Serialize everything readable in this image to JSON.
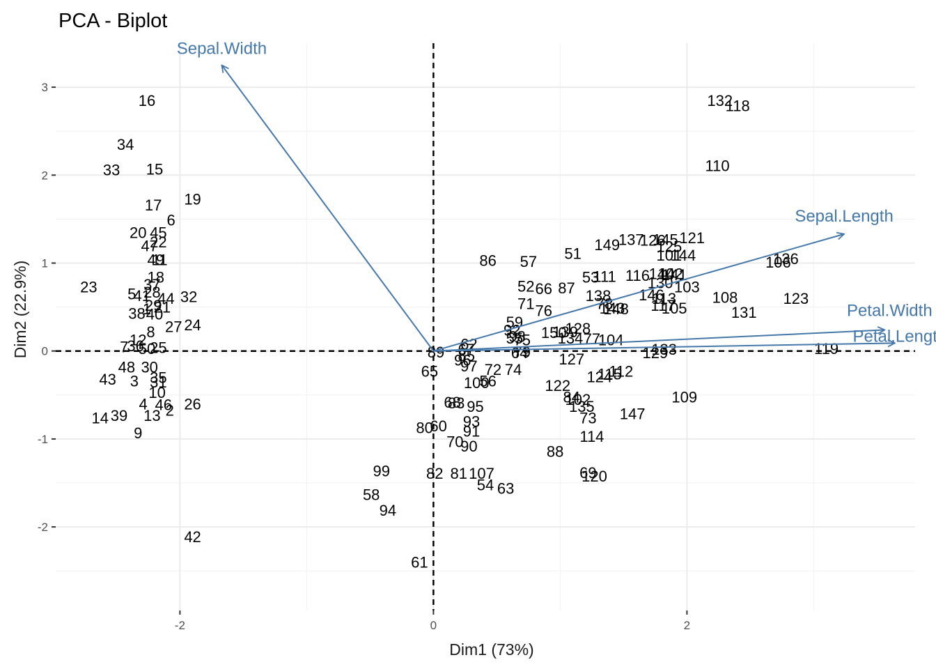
{
  "chart_data": {
    "type": "scatter",
    "title": "PCA - Biplot",
    "xlabel": "Dim1 (73%)",
    "ylabel": "Dim2 (22.9%)",
    "xlim": [
      -2.98,
      3.8
    ],
    "ylim": [
      -2.95,
      3.5
    ],
    "x_ticks": [
      -2,
      0,
      2
    ],
    "y_ticks": [
      -2,
      -1,
      0,
      1,
      2,
      3
    ],
    "grid": true,
    "reference_lines": [
      0,
      0
    ],
    "colors": {
      "variables": "#4477aa",
      "points": "#000000",
      "grid": "#ebebeb"
    },
    "variables": [
      {
        "name": "Sepal.Length",
        "x": 3.24,
        "y": 1.33
      },
      {
        "name": "Sepal.Width",
        "x": -1.67,
        "y": 3.25
      },
      {
        "name": "Petal.Length",
        "x": 3.64,
        "y": 0.09
      },
      {
        "name": "Petal.Width",
        "x": 3.56,
        "y": 0.24
      }
    ],
    "points": [
      {
        "label": "1",
        "x": -2.26,
        "y": 0.48
      },
      {
        "label": "2",
        "x": -2.08,
        "y": -0.67
      },
      {
        "label": "3",
        "x": -2.36,
        "y": -0.34
      },
      {
        "label": "4",
        "x": -2.29,
        "y": -0.6
      },
      {
        "label": "5",
        "x": -2.38,
        "y": 0.65
      },
      {
        "label": "6",
        "x": -2.07,
        "y": 1.49
      },
      {
        "label": "7",
        "x": -2.44,
        "y": 0.05
      },
      {
        "label": "8",
        "x": -2.23,
        "y": 0.22
      },
      {
        "label": "9",
        "x": -2.33,
        "y": -0.93
      },
      {
        "label": "10",
        "x": -2.18,
        "y": -0.47
      },
      {
        "label": "11",
        "x": -2.16,
        "y": 1.04
      },
      {
        "label": "12",
        "x": -2.33,
        "y": 0.13
      },
      {
        "label": "13",
        "x": -2.22,
        "y": -0.73
      },
      {
        "label": "14",
        "x": -2.63,
        "y": -0.76
      },
      {
        "label": "15",
        "x": -2.2,
        "y": 2.07
      },
      {
        "label": "16",
        "x": -2.26,
        "y": 2.85
      },
      {
        "label": "17",
        "x": -2.21,
        "y": 1.66
      },
      {
        "label": "18",
        "x": -2.19,
        "y": 0.84
      },
      {
        "label": "19",
        "x": -1.9,
        "y": 1.73
      },
      {
        "label": "20",
        "x": -2.33,
        "y": 1.35
      },
      {
        "label": "21",
        "x": -2.14,
        "y": 0.5
      },
      {
        "label": "22",
        "x": -2.17,
        "y": 1.24
      },
      {
        "label": "23",
        "x": -2.72,
        "y": 0.73
      },
      {
        "label": "24",
        "x": -1.9,
        "y": 0.3
      },
      {
        "label": "25",
        "x": -2.17,
        "y": 0.04
      },
      {
        "label": "26",
        "x": -1.9,
        "y": -0.6
      },
      {
        "label": "27",
        "x": -2.05,
        "y": 0.28
      },
      {
        "label": "28",
        "x": -2.22,
        "y": 0.67
      },
      {
        "label": "29",
        "x": -2.21,
        "y": 0.52
      },
      {
        "label": "30",
        "x": -2.24,
        "y": -0.18
      },
      {
        "label": "31",
        "x": -2.17,
        "y": -0.35
      },
      {
        "label": "32",
        "x": -1.93,
        "y": 0.62
      },
      {
        "label": "33",
        "x": -2.54,
        "y": 2.06
      },
      {
        "label": "34",
        "x": -2.43,
        "y": 2.35
      },
      {
        "label": "35",
        "x": -2.17,
        "y": -0.3
      },
      {
        "label": "36",
        "x": -2.35,
        "y": 0.06
      },
      {
        "label": "37",
        "x": -2.22,
        "y": 0.76
      },
      {
        "label": "38",
        "x": -2.34,
        "y": 0.43
      },
      {
        "label": "39",
        "x": -2.48,
        "y": -0.73
      },
      {
        "label": "40",
        "x": -2.2,
        "y": 0.42
      },
      {
        "label": "41",
        "x": -2.3,
        "y": 0.63
      },
      {
        "label": "42",
        "x": -1.9,
        "y": -2.11
      },
      {
        "label": "43",
        "x": -2.57,
        "y": -0.32
      },
      {
        "label": "44",
        "x": -2.11,
        "y": 0.6
      },
      {
        "label": "45",
        "x": -2.17,
        "y": 1.35
      },
      {
        "label": "46",
        "x": -2.13,
        "y": -0.61
      },
      {
        "label": "47",
        "x": -2.24,
        "y": 1.2
      },
      {
        "label": "48",
        "x": -2.42,
        "y": -0.18
      },
      {
        "label": "49",
        "x": -2.19,
        "y": 1.04
      },
      {
        "label": "50",
        "x": -2.26,
        "y": 0.03
      },
      {
        "label": "51",
        "x": 1.1,
        "y": 1.11
      },
      {
        "label": "52",
        "x": 0.73,
        "y": 0.74
      },
      {
        "label": "53",
        "x": 1.24,
        "y": 0.84
      },
      {
        "label": "54",
        "x": 0.41,
        "y": -1.52
      },
      {
        "label": "55",
        "x": 0.64,
        "y": 0.15
      },
      {
        "label": "56",
        "x": 0.43,
        "y": -0.34
      },
      {
        "label": "57",
        "x": 0.75,
        "y": 1.02
      },
      {
        "label": "58",
        "x": -0.49,
        "y": -1.63
      },
      {
        "label": "59",
        "x": 0.64,
        "y": 0.33
      },
      {
        "label": "60",
        "x": 0.04,
        "y": -0.85
      },
      {
        "label": "61",
        "x": -0.11,
        "y": -2.4
      },
      {
        "label": "62",
        "x": 0.28,
        "y": 0.08
      },
      {
        "label": "63",
        "x": 0.57,
        "y": -1.56
      },
      {
        "label": "64",
        "x": 0.68,
        "y": -0.02
      },
      {
        "label": "65",
        "x": -0.03,
        "y": -0.23
      },
      {
        "label": "66",
        "x": 0.87,
        "y": 0.71
      },
      {
        "label": "67",
        "x": 0.26,
        "y": 0.02
      },
      {
        "label": "68",
        "x": 0.15,
        "y": -0.58
      },
      {
        "label": "69",
        "x": 1.22,
        "y": -1.38
      },
      {
        "label": "70",
        "x": 0.17,
        "y": -1.03
      },
      {
        "label": "71",
        "x": 0.73,
        "y": 0.54
      },
      {
        "label": "72",
        "x": 0.47,
        "y": -0.21
      },
      {
        "label": "73",
        "x": 1.22,
        "y": -0.76
      },
      {
        "label": "74",
        "x": 0.63,
        "y": -0.21
      },
      {
        "label": "75",
        "x": 0.7,
        "y": 0.13
      },
      {
        "label": "76",
        "x": 0.87,
        "y": 0.46
      },
      {
        "label": "77",
        "x": 1.25,
        "y": 0.14
      },
      {
        "label": "78",
        "x": 1.35,
        "y": 0.54
      },
      {
        "label": "79",
        "x": 0.7,
        "y": -0.01
      },
      {
        "label": "80",
        "x": -0.07,
        "y": -0.87
      },
      {
        "label": "81",
        "x": 0.2,
        "y": -1.39
      },
      {
        "label": "82",
        "x": 0.01,
        "y": -1.39
      },
      {
        "label": "83",
        "x": 0.18,
        "y": -0.59
      },
      {
        "label": "84",
        "x": 1.09,
        "y": -0.52
      },
      {
        "label": "85",
        "x": 0.26,
        "y": -0.05
      },
      {
        "label": "86",
        "x": 0.43,
        "y": 1.03
      },
      {
        "label": "87",
        "x": 1.05,
        "y": 0.72
      },
      {
        "label": "88",
        "x": 0.96,
        "y": -1.14
      },
      {
        "label": "89",
        "x": 0.02,
        "y": -0.01
      },
      {
        "label": "90",
        "x": 0.28,
        "y": -1.08
      },
      {
        "label": "91",
        "x": 0.3,
        "y": -0.91
      },
      {
        "label": "92",
        "x": 0.62,
        "y": 0.24
      },
      {
        "label": "93",
        "x": 0.3,
        "y": -0.8
      },
      {
        "label": "94",
        "x": -0.36,
        "y": -1.81
      },
      {
        "label": "95",
        "x": 0.33,
        "y": -0.63
      },
      {
        "label": "96",
        "x": 0.23,
        "y": -0.1
      },
      {
        "label": "97",
        "x": 0.28,
        "y": -0.17
      },
      {
        "label": "98",
        "x": 0.66,
        "y": 0.17
      },
      {
        "label": "99",
        "x": -0.41,
        "y": -1.36
      },
      {
        "label": "100",
        "x": 0.34,
        "y": -0.36
      },
      {
        "label": "101",
        "x": 1.86,
        "y": 1.09
      },
      {
        "label": "102",
        "x": 1.14,
        "y": -0.55
      },
      {
        "label": "103",
        "x": 2.0,
        "y": 0.73
      },
      {
        "label": "104",
        "x": 1.4,
        "y": 0.13
      },
      {
        "label": "105",
        "x": 1.9,
        "y": 0.49
      },
      {
        "label": "106",
        "x": 2.72,
        "y": 1.01
      },
      {
        "label": "107",
        "x": 0.38,
        "y": -1.39
      },
      {
        "label": "108",
        "x": 2.3,
        "y": 0.61
      },
      {
        "label": "109",
        "x": 1.98,
        "y": -0.52
      },
      {
        "label": "110",
        "x": 2.24,
        "y": 2.11
      },
      {
        "label": "111",
        "x": 1.35,
        "y": 0.85
      },
      {
        "label": "112",
        "x": 1.48,
        "y": -0.23
      },
      {
        "label": "113",
        "x": 1.82,
        "y": 0.6
      },
      {
        "label": "114",
        "x": 1.25,
        "y": -0.97
      },
      {
        "label": "115",
        "x": 1.39,
        "y": -0.26
      },
      {
        "label": "116",
        "x": 1.61,
        "y": 0.86
      },
      {
        "label": "117",
        "x": 1.81,
        "y": 0.52
      },
      {
        "label": "118",
        "x": 2.4,
        "y": 2.79
      },
      {
        "label": "119",
        "x": 3.1,
        "y": 0.03
      },
      {
        "label": "120",
        "x": 1.27,
        "y": -1.42
      },
      {
        "label": "121",
        "x": 2.04,
        "y": 1.29
      },
      {
        "label": "122",
        "x": 0.98,
        "y": -0.39
      },
      {
        "label": "123",
        "x": 2.86,
        "y": 0.6
      },
      {
        "label": "124",
        "x": 1.31,
        "y": -0.29
      },
      {
        "label": "125",
        "x": 1.86,
        "y": 1.19
      },
      {
        "label": "126",
        "x": 1.73,
        "y": 1.26
      },
      {
        "label": "127",
        "x": 1.09,
        "y": -0.09
      },
      {
        "label": "128",
        "x": 1.14,
        "y": 0.26
      },
      {
        "label": "129",
        "x": 1.75,
        "y": -0.02
      },
      {
        "label": "130",
        "x": 1.79,
        "y": 0.78
      },
      {
        "label": "131",
        "x": 2.45,
        "y": 0.44
      },
      {
        "label": "132",
        "x": 2.26,
        "y": 2.85
      },
      {
        "label": "133",
        "x": 1.82,
        "y": 0.02
      },
      {
        "label": "134",
        "x": 1.08,
        "y": 0.15
      },
      {
        "label": "135",
        "x": 1.17,
        "y": -0.63
      },
      {
        "label": "136",
        "x": 2.78,
        "y": 1.05
      },
      {
        "label": "137",
        "x": 1.56,
        "y": 1.27
      },
      {
        "label": "138",
        "x": 1.3,
        "y": 0.63
      },
      {
        "label": "139",
        "x": 1.04,
        "y": 0.22
      },
      {
        "label": "140",
        "x": 1.8,
        "y": 0.88
      },
      {
        "label": "141",
        "x": 1.9,
        "y": 0.87
      },
      {
        "label": "142",
        "x": 1.87,
        "y": 0.88
      },
      {
        "label": "143",
        "x": 1.41,
        "y": 0.49
      },
      {
        "label": "144",
        "x": 1.97,
        "y": 1.09
      },
      {
        "label": "145",
        "x": 1.83,
        "y": 1.27
      },
      {
        "label": "146",
        "x": 1.72,
        "y": 0.64
      },
      {
        "label": "147",
        "x": 1.57,
        "y": -0.71
      },
      {
        "label": "148",
        "x": 1.44,
        "y": 0.48
      },
      {
        "label": "149",
        "x": 1.37,
        "y": 1.21
      },
      {
        "label": "150",
        "x": 0.95,
        "y": 0.21
      }
    ]
  }
}
